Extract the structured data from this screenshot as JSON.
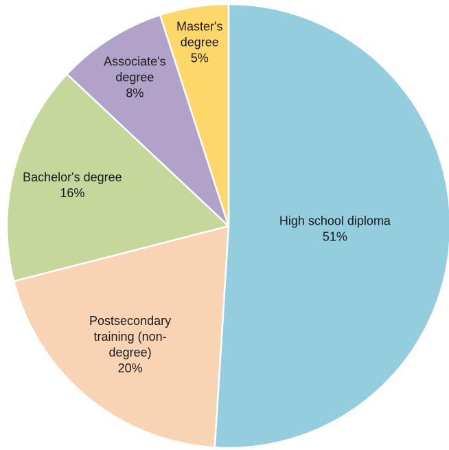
{
  "chart_data": {
    "type": "pie",
    "title": "",
    "slices": [
      {
        "name": "High school diploma",
        "value": 51,
        "value_label": "51%",
        "label_lines": [
          "High school diploma"
        ],
        "color": "#94CDDD"
      },
      {
        "name": "Postsecondary training (non-degree)",
        "value": 20,
        "value_label": "20%",
        "label_lines": [
          "Postsecondary",
          "training (non-",
          "degree)"
        ],
        "color": "#F9D4B4"
      },
      {
        "name": "Bachelor's degree",
        "value": 16,
        "value_label": "16%",
        "label_lines": [
          "Bachelor's degree"
        ],
        "color": "#C5D79B"
      },
      {
        "name": "Associate's degree",
        "value": 8,
        "value_label": "8%",
        "label_lines": [
          "Associate's",
          "degree"
        ],
        "color": "#B1A2C9"
      },
      {
        "name": "Master's degree",
        "value": 5,
        "value_label": "5%",
        "label_lines": [
          "Master's",
          "degree"
        ],
        "color": "#FDD76A"
      }
    ],
    "start": "12 o'clock",
    "direction": "clockwise",
    "legend": "none",
    "data_labels": "inside, category name and percentage"
  }
}
